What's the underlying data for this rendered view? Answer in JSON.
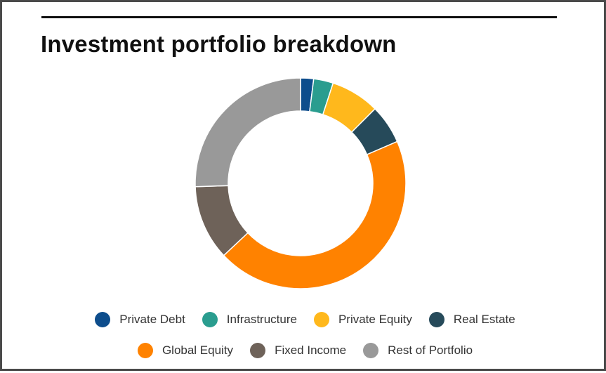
{
  "title": "Investment portfolio breakdown",
  "chart_data": {
    "type": "pie",
    "subtype": "donut",
    "title": "Investment portfolio breakdown",
    "series": [
      {
        "name": "Private Debt",
        "value": 2.0,
        "color": "#0d4d8c"
      },
      {
        "name": "Infrastructure",
        "value": 3.0,
        "color": "#2a9d8f"
      },
      {
        "name": "Private Equity",
        "value": 7.5,
        "color": "#ffb81c"
      },
      {
        "name": "Real Estate",
        "value": 6.0,
        "color": "#264a5a"
      },
      {
        "name": "Global Equity",
        "value": 44.5,
        "color": "#ff8200"
      },
      {
        "name": "Fixed Income",
        "value": 11.5,
        "color": "#6e6259"
      },
      {
        "name": "Rest of Portfolio",
        "value": 25.5,
        "color": "#999999"
      }
    ],
    "legend_position": "bottom",
    "legend_rows": [
      [
        0,
        1,
        2,
        3
      ],
      [
        4,
        5,
        6
      ]
    ]
  }
}
